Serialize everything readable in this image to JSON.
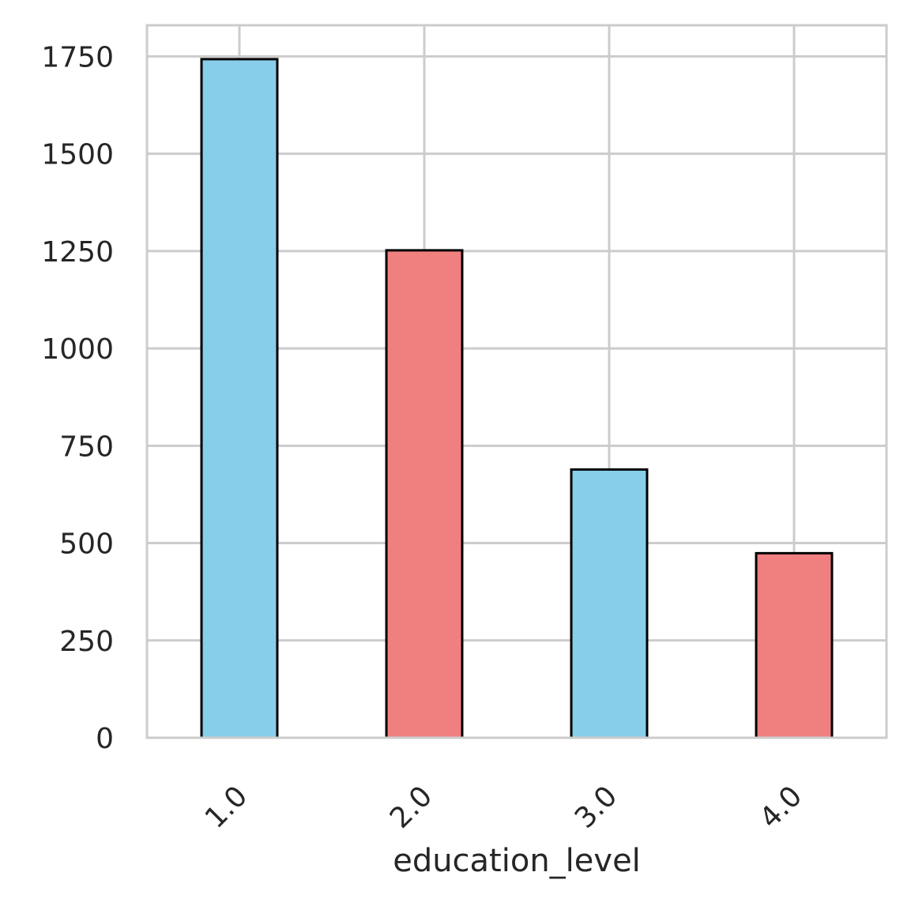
{
  "chart_data": {
    "type": "bar",
    "categories": [
      "1.0",
      "2.0",
      "3.0",
      "4.0"
    ],
    "values": [
      1743,
      1252,
      689,
      474
    ],
    "colors": [
      "#87CEEB",
      "#F08080",
      "#87CEEB",
      "#F08080"
    ],
    "edge_color": "#000000",
    "title": "",
    "xlabel": "education_level",
    "ylabel": "",
    "ylim": [
      0,
      1830
    ],
    "yticks": [
      0,
      250,
      500,
      750,
      1000,
      1250,
      1500,
      1750
    ],
    "x_tick_rotation": 45,
    "grid": true,
    "grid_color": "#cccccc",
    "background": "#ffffff"
  }
}
